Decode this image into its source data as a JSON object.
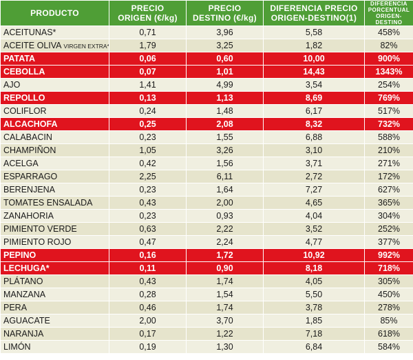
{
  "header": {
    "producto": "PRODUCTO",
    "origen_1": "PRECIO",
    "origen_2": "ORIGEN (€/kg)",
    "destino_1": "PRECIO",
    "destino_2": "DESTINO (€/kg)",
    "diff_1": "DIFERENCIA PRECIO",
    "diff_2": "ORIGEN-DESTINO(1)",
    "pct_1": "DIFERENCIA",
    "pct_2": "PORCENTUAL",
    "pct_3": "ORIGEN-DESTINO"
  },
  "rows": [
    {
      "producto": "ACEITUNAS*",
      "sub": "",
      "origen": "0,71",
      "destino": "3,96",
      "diferencia": "5,58",
      "porcentaje": "458%",
      "highlight": false
    },
    {
      "producto": "ACEITE OLIVA ",
      "sub": "VIRGEN EXTRA*",
      "origen": "1,79",
      "destino": "3,25",
      "diferencia": "1,82",
      "porcentaje": "82%",
      "highlight": false
    },
    {
      "producto": "PATATA",
      "sub": "",
      "origen": "0,06",
      "destino": "0,60",
      "diferencia": "10,00",
      "porcentaje": "900%",
      "highlight": true
    },
    {
      "producto": "CEBOLLA",
      "sub": "",
      "origen": "0,07",
      "destino": "1,01",
      "diferencia": "14,43",
      "porcentaje": "1343%",
      "highlight": true
    },
    {
      "producto": "AJO",
      "sub": "",
      "origen": "1,41",
      "destino": "4,99",
      "diferencia": "3,54",
      "porcentaje": "254%",
      "highlight": false
    },
    {
      "producto": "REPOLLO",
      "sub": "",
      "origen": "0,13",
      "destino": "1,13",
      "diferencia": "8,69",
      "porcentaje": "769%",
      "highlight": true
    },
    {
      "producto": "COLIFLOR",
      "sub": "",
      "origen": "0,24",
      "destino": "1,48",
      "diferencia": "6,17",
      "porcentaje": "517%",
      "highlight": false
    },
    {
      "producto": "ALCACHOFA",
      "sub": "",
      "origen": "0,25",
      "destino": "2,08",
      "diferencia": "8,32",
      "porcentaje": "732%",
      "highlight": true
    },
    {
      "producto": "CALABACIN",
      "sub": "",
      "origen": "0,23",
      "destino": "1,55",
      "diferencia": "6,88",
      "porcentaje": "588%",
      "highlight": false
    },
    {
      "producto": "CHAMPIÑON",
      "sub": "",
      "origen": "1,05",
      "destino": "3,26",
      "diferencia": "3,10",
      "porcentaje": "210%",
      "highlight": false
    },
    {
      "producto": "ACELGA",
      "sub": "",
      "origen": "0,42",
      "destino": "1,56",
      "diferencia": "3,71",
      "porcentaje": "271%",
      "highlight": false
    },
    {
      "producto": "ESPARRAGO",
      "sub": "",
      "origen": "2,25",
      "destino": "6,11",
      "diferencia": "2,72",
      "porcentaje": "172%",
      "highlight": false
    },
    {
      "producto": "BERENJENA",
      "sub": "",
      "origen": "0,23",
      "destino": "1,64",
      "diferencia": "7,27",
      "porcentaje": "627%",
      "highlight": false
    },
    {
      "producto": "TOMATES ENSALADA",
      "sub": "",
      "origen": "0,43",
      "destino": "2,00",
      "diferencia": "4,65",
      "porcentaje": "365%",
      "highlight": false
    },
    {
      "producto": "ZANAHORIA",
      "sub": "",
      "origen": "0,23",
      "destino": "0,93",
      "diferencia": "4,04",
      "porcentaje": "304%",
      "highlight": false
    },
    {
      "producto": "PIMIENTO VERDE",
      "sub": "",
      "origen": "0,63",
      "destino": "2,22",
      "diferencia": "3,52",
      "porcentaje": "252%",
      "highlight": false
    },
    {
      "producto": "PIMIENTO ROJO",
      "sub": "",
      "origen": "0,47",
      "destino": "2,24",
      "diferencia": "4,77",
      "porcentaje": "377%",
      "highlight": false
    },
    {
      "producto": "PEPINO",
      "sub": "",
      "origen": "0,16",
      "destino": "1,72",
      "diferencia": "10,92",
      "porcentaje": "992%",
      "highlight": true
    },
    {
      "producto": "LECHUGA*",
      "sub": "",
      "origen": "0,11",
      "destino": "0,90",
      "diferencia": "8,18",
      "porcentaje": "718%",
      "highlight": true
    },
    {
      "producto": "PLÁTANO",
      "sub": "",
      "origen": "0,43",
      "destino": "1,74",
      "diferencia": "4,05",
      "porcentaje": "305%",
      "highlight": false
    },
    {
      "producto": "MANZANA",
      "sub": "",
      "origen": "0,28",
      "destino": "1,54",
      "diferencia": "5,50",
      "porcentaje": "450%",
      "highlight": false
    },
    {
      "producto": "PERA",
      "sub": "",
      "origen": "0,46",
      "destino": "1,74",
      "diferencia": "3,78",
      "porcentaje": "278%",
      "highlight": false
    },
    {
      "producto": "AGUACATE",
      "sub": "",
      "origen": "2,00",
      "destino": "3,70",
      "diferencia": "1,85",
      "porcentaje": "85%",
      "highlight": false
    },
    {
      "producto": "NARANJA",
      "sub": "",
      "origen": "0,17",
      "destino": "1,22",
      "diferencia": "7,18",
      "porcentaje": "618%",
      "highlight": false
    },
    {
      "producto": "LIMÓN",
      "sub": "",
      "origen": "0,19",
      "destino": "1,30",
      "diferencia": "6,84",
      "porcentaje": "584%",
      "highlight": false
    }
  ],
  "colors": {
    "header_bg": "#4f9e36",
    "highlight_bg": "#e0141e",
    "row_bg": "#f0efe0",
    "row_alt_bg": "#e6e4cc"
  }
}
